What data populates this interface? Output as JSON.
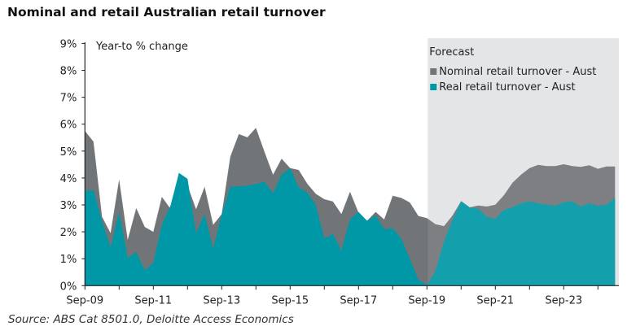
{
  "title": "Nominal and retail Australian retail turnover",
  "source": "Source: ABS Cat 8501.0, Deloitte Access Economics",
  "chart_data": {
    "type": "area",
    "title": "Nominal and retail Australian retail turnover",
    "ylabel": "Year-to % change",
    "xlabel": "",
    "ylim": [
      0,
      9
    ],
    "yticks": [
      "0%",
      "1%",
      "2%",
      "3%",
      "4%",
      "5%",
      "6%",
      "7%",
      "8%",
      "9%"
    ],
    "xtick_labels": [
      "Sep-09",
      "Sep-11",
      "Sep-13",
      "Sep-15",
      "Sep-17",
      "Sep-19",
      "Sep-21",
      "Sep-23"
    ],
    "grid": false,
    "legend_placement": "top-right",
    "forecast": {
      "label": "Forecast",
      "start": "Sep-19",
      "color": "#e2e3e5"
    },
    "categories": [
      "Sep-09",
      "Dec-09",
      "Mar-10",
      "Jun-10",
      "Sep-10",
      "Dec-10",
      "Mar-11",
      "Jun-11",
      "Sep-11",
      "Dec-11",
      "Mar-12",
      "Jun-12",
      "Sep-12",
      "Dec-12",
      "Mar-13",
      "Jun-13",
      "Sep-13",
      "Dec-13",
      "Mar-14",
      "Jun-14",
      "Sep-14",
      "Dec-14",
      "Mar-15",
      "Jun-15",
      "Sep-15",
      "Dec-15",
      "Mar-16",
      "Jun-16",
      "Sep-16",
      "Dec-16",
      "Mar-17",
      "Jun-17",
      "Sep-17",
      "Dec-17",
      "Mar-18",
      "Jun-18",
      "Sep-18",
      "Dec-18",
      "Mar-19",
      "Jun-19",
      "Sep-19",
      "Dec-19",
      "Mar-20",
      "Jun-20",
      "Sep-20",
      "Dec-20",
      "Mar-21",
      "Jun-21",
      "Sep-21",
      "Dec-21",
      "Mar-22",
      "Jun-22",
      "Sep-22",
      "Dec-22",
      "Mar-23",
      "Jun-23",
      "Sep-23",
      "Dec-23",
      "Mar-24",
      "Jun-24",
      "Sep-24",
      "Dec-24",
      "Mar-25"
    ],
    "series": [
      {
        "name": "Nominal retail turnover - Aust",
        "color": "#727578",
        "values": [
          5.75,
          5.35,
          2.56,
          1.95,
          3.95,
          1.7,
          2.88,
          2.18,
          2.0,
          3.3,
          2.86,
          4.19,
          3.72,
          2.84,
          3.67,
          2.26,
          2.66,
          4.79,
          5.63,
          5.51,
          5.86,
          4.97,
          4.12,
          4.72,
          4.37,
          4.3,
          3.79,
          3.41,
          3.21,
          3.13,
          2.66,
          3.49,
          2.71,
          2.41,
          2.74,
          2.46,
          3.34,
          3.26,
          3.09,
          2.59,
          2.51,
          2.28,
          2.21,
          2.61,
          3.14,
          2.91,
          2.98,
          2.94,
          3.01,
          3.36,
          3.82,
          4.12,
          4.37,
          4.49,
          4.44,
          4.44,
          4.51,
          4.44,
          4.41,
          4.47,
          4.34,
          4.43,
          4.43
        ]
      },
      {
        "name": "Real retail turnover - Aust",
        "color": "#0097a7",
        "values": [
          3.51,
          3.56,
          2.4,
          1.42,
          2.74,
          1.03,
          1.25,
          0.57,
          0.85,
          2.26,
          2.96,
          4.19,
          3.97,
          1.95,
          2.66,
          1.38,
          2.66,
          3.67,
          3.69,
          3.72,
          3.77,
          3.87,
          3.43,
          4.12,
          4.37,
          3.65,
          3.46,
          3.01,
          1.75,
          1.92,
          1.3,
          2.46,
          2.74,
          2.41,
          2.61,
          2.1,
          2.13,
          1.75,
          1.0,
          0.22,
          0.02,
          0.55,
          1.65,
          2.46,
          3.14,
          2.91,
          2.86,
          2.56,
          2.48,
          2.81,
          2.91,
          3.06,
          3.13,
          3.06,
          3.01,
          2.96,
          3.1,
          3.13,
          2.94,
          3.06,
          2.96,
          3.01,
          3.26
        ]
      }
    ]
  }
}
